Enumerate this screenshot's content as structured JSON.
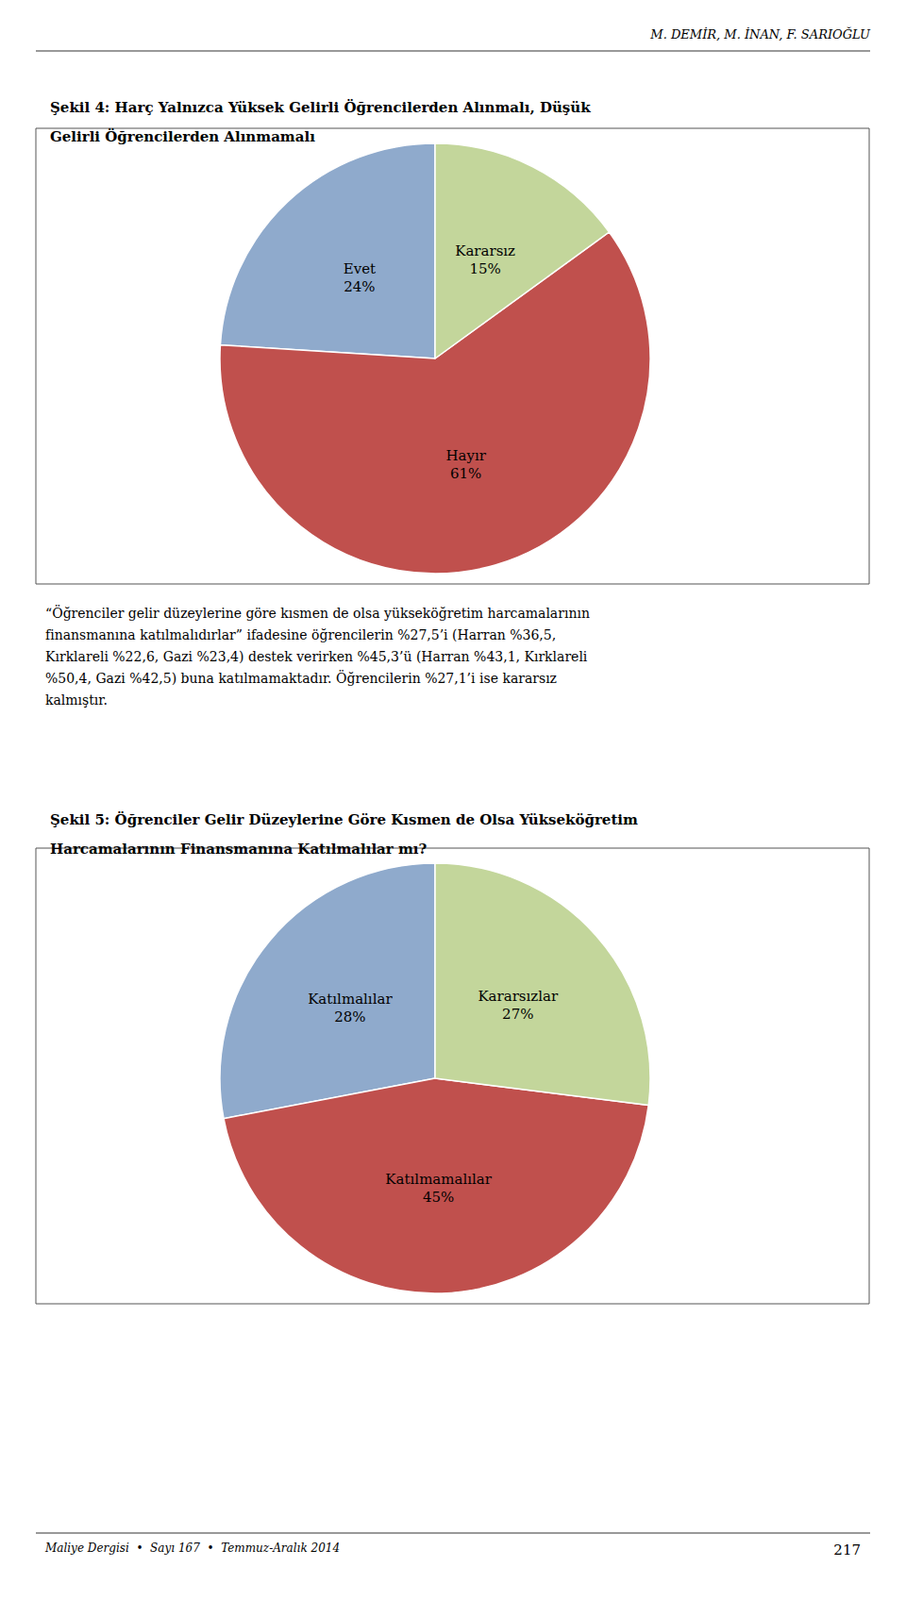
{
  "header": "M. DEMİR, M. İNAN, F. SARIOĞLU",
  "paragraph": [
    "“Öğrenciler gelir düzeylerine göre kısmen de olsa yükseköğretim harcamalarının",
    "finansmanına katılmalıdırlar” ifadesine öğrencilerin %27,5’i (Harran %36,5,",
    "Kırklareli %22,6, Gazi %23,4) destek verirken %45,3’ü (Harran %43,1, Kırklareli",
    "%50,4, Gazi %42,5) buna katılmamaktadır. Öğrencilerin %27,1’i ise kararsız",
    "kalmıştır."
  ],
  "footer": "Maliye Dergisi  •  Sayı 167  •  Temmuz-Aralık 2014",
  "page_number": "217",
  "chart_data": [
    {
      "type": "pie",
      "title": "Şekil 4: Harç Yalnızca Yüksek Gelirli Öğrencilerden Alınmalı, Düşük\nGelirli Öğrencilerden Alınmamalı",
      "categories": [
        "Evet",
        "Hayır",
        "Kararsız"
      ],
      "values": [
        24,
        61,
        15
      ],
      "value_labels": [
        "24%",
        "61%",
        "15%"
      ],
      "data_labels": true,
      "colors": [
        "#8FAACC",
        "#C0504D",
        "#C3D69B"
      ]
    },
    {
      "type": "pie",
      "title": "Şekil 5: Öğrenciler Gelir Düzeylerine Göre Kısmen de Olsa Yükseköğretim\nHarcamalarının Finansmanına Katılmalılar mı?",
      "categories": [
        "Katılmalılar",
        "Katılmamalılar",
        "Kararsızlar"
      ],
      "values": [
        28,
        45,
        27
      ],
      "value_labels": [
        "28%",
        "45%",
        "27%"
      ],
      "data_labels": true,
      "colors": [
        "#8FAACC",
        "#C0504D",
        "#C3D69B"
      ]
    }
  ]
}
